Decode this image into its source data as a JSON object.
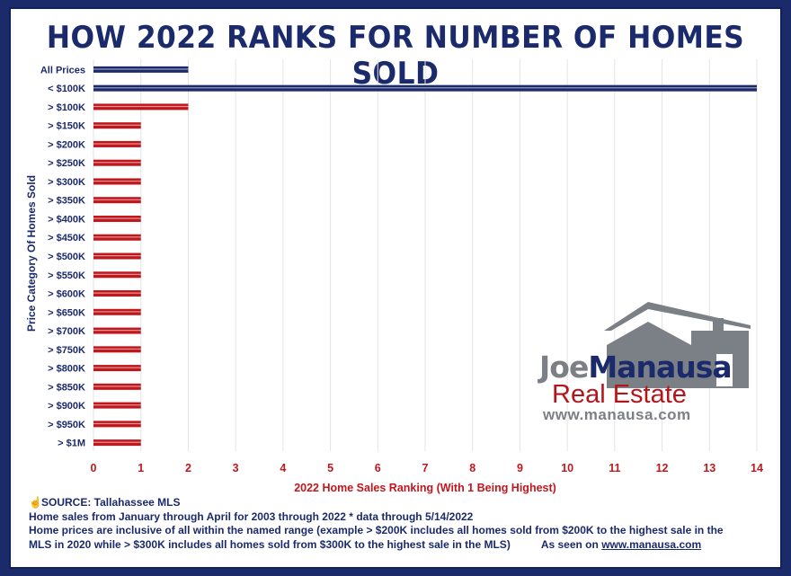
{
  "title": "HOW 2022 RANKS FOR NUMBER OF HOMES SOLD",
  "chart_data": {
    "type": "bar",
    "orientation": "horizontal",
    "categories": [
      "All Prices",
      "< $100K",
      "> $100K",
      "> $150K",
      "> $200K",
      "> $250K",
      "> $300K",
      "> $350K",
      "> $400K",
      "> $450K",
      "> $500K",
      "> $550K",
      "> $600K",
      "> $650K",
      "> $700K",
      "> $750K",
      "> $800K",
      "> $850K",
      "> $900K",
      "> $950K",
      "> $1M"
    ],
    "values": [
      2,
      14,
      2,
      1,
      1,
      1,
      1,
      1,
      1,
      1,
      1,
      1,
      1,
      1,
      1,
      1,
      1,
      1,
      1,
      1,
      1
    ],
    "bar_colors": [
      "#1b2a6b",
      "#1b2a6b",
      "#c0171d",
      "#c0171d",
      "#c0171d",
      "#c0171d",
      "#c0171d",
      "#c0171d",
      "#c0171d",
      "#c0171d",
      "#c0171d",
      "#c0171d",
      "#c0171d",
      "#c0171d",
      "#c0171d",
      "#c0171d",
      "#c0171d",
      "#c0171d",
      "#c0171d",
      "#c0171d",
      "#c0171d"
    ],
    "xlim": [
      0,
      14
    ],
    "xticks": [
      "0",
      "1",
      "2",
      "3",
      "4",
      "5",
      "6",
      "7",
      "8",
      "9",
      "10",
      "11",
      "12",
      "13",
      "14"
    ],
    "xlabel": "2022 Home Sales Ranking (With 1 Being Highest)",
    "ylabel": "Price Category Of Homes Sold",
    "grid": "vertical"
  },
  "footer": {
    "source": "SOURCE: Tallahassee MLS",
    "line1": "Home sales from January through April for 2003 through 2022 * data through 5/14/2022",
    "line2": "Home prices are inclusive of all within the named range (example > $200K includes all homes sold from $200K to the highest sale in the",
    "line3": "MLS in 2020 while > $300K includes all homes sold from $300K to the highest sale in the MLS)",
    "seen_on": "As seen on",
    "link": "www.manausa.com"
  },
  "logo": {
    "joe": "Joe",
    "manausa": "Manausa",
    "real_estate": "Real Estate",
    "url": "www.manausa.com"
  },
  "colors": {
    "navy": "#1b2a6b",
    "red": "#c0171d",
    "grid": "#e3e3e3",
    "gray": "#7b7f86"
  }
}
